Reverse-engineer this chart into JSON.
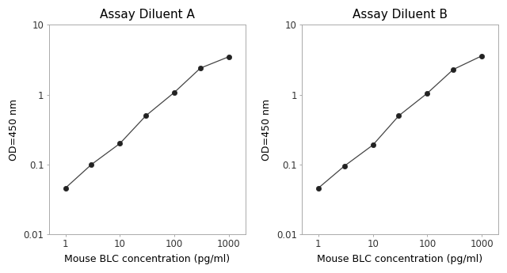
{
  "title_A": "Assay Diluent A",
  "title_B": "Assay Diluent B",
  "xlabel": "Mouse BLC concentration (pg/ml)",
  "ylabel": "OD=450 nm",
  "xlim": [
    0.5,
    2000
  ],
  "ylim": [
    0.01,
    10
  ],
  "xticks": [
    1,
    10,
    100,
    1000
  ],
  "yticks": [
    0.01,
    0.1,
    1,
    10
  ],
  "xticklabels": [
    "1",
    "10",
    "100",
    "1000"
  ],
  "yticklabels": [
    "0.01",
    "0.1",
    "1",
    "10"
  ],
  "data_A_x": [
    1,
    3,
    10,
    30,
    100,
    300,
    1000
  ],
  "data_A_y": [
    0.046,
    0.1,
    0.2,
    0.5,
    1.08,
    2.4,
    3.5
  ],
  "data_B_x": [
    1,
    3,
    10,
    30,
    100,
    300,
    1000
  ],
  "data_B_y": [
    0.046,
    0.095,
    0.19,
    0.5,
    1.05,
    2.3,
    3.6
  ],
  "line_color": "#444444",
  "marker_color": "#222222",
  "bg_color": "#ffffff",
  "title_fontsize": 11,
  "label_fontsize": 9,
  "tick_fontsize": 8.5
}
